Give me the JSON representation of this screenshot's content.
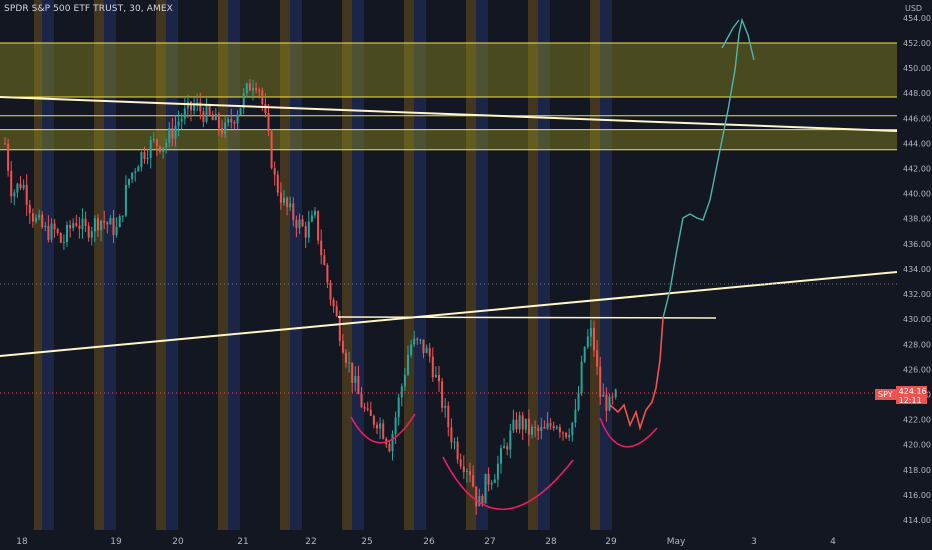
{
  "header": {
    "title": "SPDR S&P 500 ETF TRUST, 30, AMEX",
    "currency": "USD"
  },
  "price_badge": {
    "symbol": "SPY",
    "price": "424.16",
    "countdown": "12:11"
  },
  "colors": {
    "background": "#131722",
    "up": "#26a69a",
    "down": "#ef5350",
    "zone_fill": "#8f8a1f",
    "zone_border": "#f0e04a",
    "trendline": "#fff5c7",
    "cup_curve": "#e91e63",
    "projection": "#4db6ac",
    "session_orange": "#c08a1a",
    "session_blue": "#2a3f8f"
  },
  "chart_data": {
    "type": "candlestick",
    "symbol": "SPY",
    "interval": "30",
    "exchange": "AMEX",
    "x_tick_labels": [
      "18",
      "19",
      "20",
      "21",
      "22",
      "25",
      "26",
      "27",
      "28",
      "29",
      "May",
      "3",
      "4"
    ],
    "y_ticks": [
      414,
      416,
      418,
      420,
      422,
      424,
      426,
      428,
      430,
      432,
      434,
      436,
      438,
      440,
      442,
      444,
      446,
      448,
      450,
      452,
      454
    ],
    "y_tick_labels": [
      "414.00",
      "416.00",
      "418.00",
      "420.00",
      "422.00",
      "424.00",
      "426.00",
      "428.00",
      "430.00",
      "432.00",
      "434.00",
      "436.00",
      "438.00",
      "440.00",
      "442.00",
      "444.00",
      "446.00",
      "448.00",
      "450.00",
      "452.00",
      "454.00"
    ],
    "ylim": [
      413,
      455
    ],
    "last_price": 424.16,
    "resistance_zones": [
      {
        "top": 452.0,
        "bottom": 447.7
      },
      {
        "top": 445.1,
        "bottom": 443.5
      }
    ],
    "horizontal_lines": [
      452.0,
      447.7,
      446.2,
      445.1,
      443.5,
      430.0,
      433.0
    ],
    "trendlines": [
      {
        "from_date": "Apr 17",
        "from_price": 447.6,
        "to_date": "May 4",
        "to_price": 444.9
      },
      {
        "from_date": "Apr 17",
        "from_price": 427.2,
        "to_date": "May 4",
        "to_price": 433.6
      },
      {
        "from_date": "Apr 22",
        "from_price": 430.1,
        "to_date": "Apr 30",
        "to_price": 430.0
      }
    ],
    "pattern_annotations": [
      "inverse head and shoulders"
    ],
    "projection_target": 453.8,
    "candles_close_path": [
      {
        "date": "Apr 18",
        "close": 437.5
      },
      {
        "date": "Apr 19",
        "close": 440.5
      },
      {
        "date": "Apr 20",
        "close": 446.5
      },
      {
        "date": "Apr 21",
        "close": 449.0
      },
      {
        "date": "Apr 21",
        "close": 444.5
      },
      {
        "date": "Apr 22",
        "close": 438.0
      },
      {
        "date": "Apr 22",
        "close": 430.0
      },
      {
        "date": "Apr 25",
        "close": 424.0
      },
      {
        "date": "Apr 25",
        "close": 420.5
      },
      {
        "date": "Apr 26",
        "close": 428.5
      },
      {
        "date": "Apr 26",
        "close": 424.0
      },
      {
        "date": "Apr 27",
        "close": 414.5
      },
      {
        "date": "Apr 27",
        "close": 418.0
      },
      {
        "date": "Apr 28",
        "close": 421.0
      },
      {
        "date": "Apr 28",
        "close": 423.0
      },
      {
        "date": "Apr 29",
        "close": 429.0
      },
      {
        "date": "Apr 29",
        "close": 424.16
      }
    ]
  }
}
